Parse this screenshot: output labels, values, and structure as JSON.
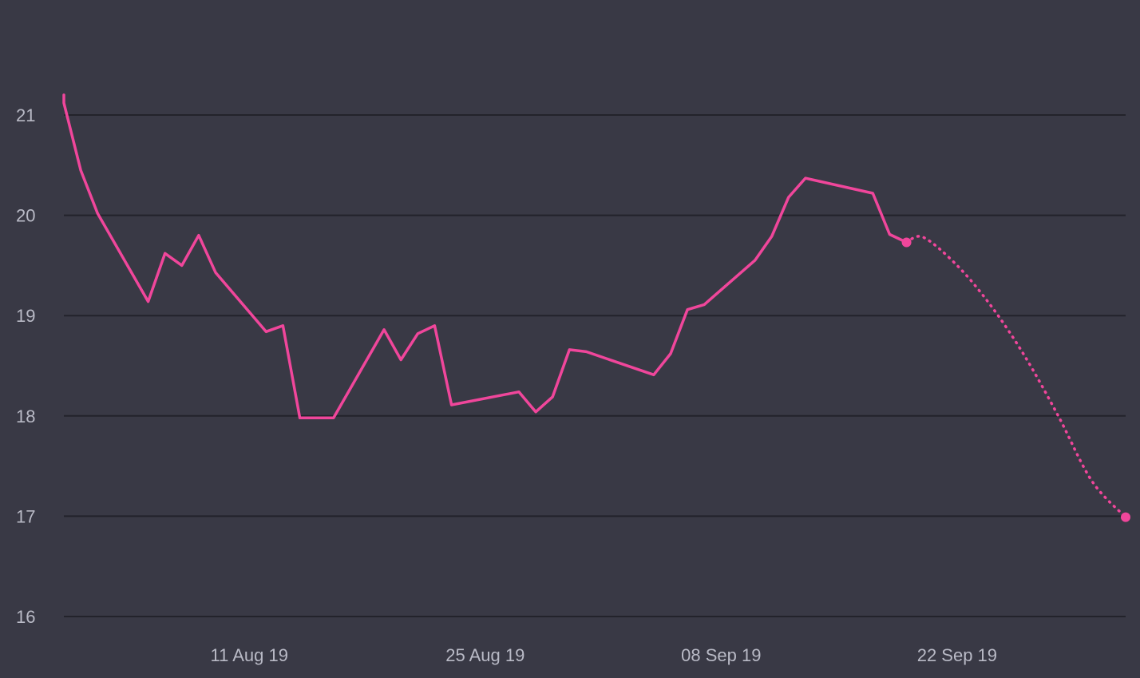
{
  "chart_data": {
    "type": "line",
    "title": "",
    "xlabel": "",
    "ylabel": "",
    "ylim": [
      16,
      21.5
    ],
    "xlim": [
      "2019-07-31",
      "2019-10-02"
    ],
    "grid": true,
    "legend": "none",
    "y_ticks": [
      "16",
      "17",
      "18",
      "19",
      "20",
      "21"
    ],
    "x_ticks": [
      {
        "date": "2019-08-11",
        "label": "11 Aug 19"
      },
      {
        "date": "2019-08-25",
        "label": "25 Aug 19"
      },
      {
        "date": "2019-09-08",
        "label": "08 Sep 19"
      },
      {
        "date": "2019-09-22",
        "label": "22 Sep 19"
      }
    ],
    "series": [
      {
        "style": "solid",
        "color": "#f0469b",
        "end_marker": true,
        "points": [
          [
            "2019-07-31",
            21.2
          ],
          [
            "2019-07-31",
            21.12
          ],
          [
            "2019-08-01",
            20.45
          ],
          [
            "2019-08-02",
            20.02
          ],
          [
            "2019-08-05",
            19.14
          ],
          [
            "2019-08-06",
            19.62
          ],
          [
            "2019-08-07",
            19.5
          ],
          [
            "2019-08-08",
            19.8
          ],
          [
            "2019-08-09",
            19.43
          ],
          [
            "2019-08-12",
            18.84
          ],
          [
            "2019-08-13",
            18.9
          ],
          [
            "2019-08-14",
            17.98
          ],
          [
            "2019-08-16",
            17.98
          ],
          [
            "2019-08-19",
            18.86
          ],
          [
            "2019-08-20",
            18.56
          ],
          [
            "2019-08-21",
            18.82
          ],
          [
            "2019-08-22",
            18.9
          ],
          [
            "2019-08-23",
            18.11
          ],
          [
            "2019-08-27",
            18.24
          ],
          [
            "2019-08-28",
            18.04
          ],
          [
            "2019-08-29",
            18.19
          ],
          [
            "2019-08-30",
            18.66
          ],
          [
            "2019-08-31",
            18.64
          ],
          [
            "2019-09-04",
            18.41
          ],
          [
            "2019-09-05",
            18.62
          ],
          [
            "2019-09-06",
            19.06
          ],
          [
            "2019-09-07",
            19.11
          ],
          [
            "2019-09-10",
            19.55
          ],
          [
            "2019-09-11",
            19.79
          ],
          [
            "2019-09-12",
            20.18
          ],
          [
            "2019-09-13",
            20.37
          ],
          [
            "2019-09-17",
            20.22
          ],
          [
            "2019-09-18",
            19.81
          ],
          [
            "2019-09-19",
            19.73
          ]
        ]
      },
      {
        "style": "dotted",
        "color": "#f0469b",
        "end_marker": true,
        "points": [
          [
            "2019-09-19",
            19.73
          ],
          [
            "2019-09-20",
            19.78
          ],
          [
            "2019-09-22",
            19.5
          ],
          [
            "2019-09-24",
            19.1
          ],
          [
            "2019-09-26",
            18.6
          ],
          [
            "2019-09-28",
            18.0
          ],
          [
            "2019-09-30",
            17.35
          ],
          [
            "2019-10-02",
            16.99
          ]
        ]
      }
    ],
    "colors": {
      "background": "#393945",
      "gridline": "#23232b",
      "tick_text": "#b9bac6",
      "line": "#f0469b"
    }
  }
}
